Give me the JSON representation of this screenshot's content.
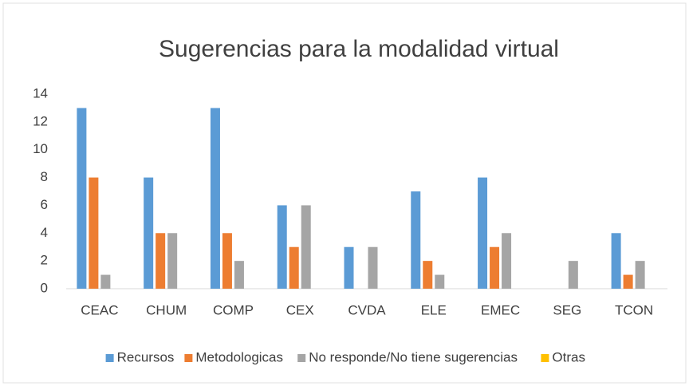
{
  "chart_data": {
    "type": "bar",
    "title": "Sugerencias para la modalidad virtual",
    "categories": [
      "CEAC",
      "CHUM",
      "COMP",
      "CEX",
      "CVDA",
      "ELE",
      "EMEC",
      "SEG",
      "TCON"
    ],
    "series": [
      {
        "name": "Recursos",
        "color": "#5b9bd5",
        "values": [
          13,
          8,
          13,
          6,
          3,
          7,
          8,
          0,
          4
        ]
      },
      {
        "name": "Metodologicas",
        "color": "#ed7d31",
        "values": [
          8,
          4,
          4,
          3,
          0,
          2,
          3,
          0,
          1
        ]
      },
      {
        "name": "No responde/No tiene sugerencias",
        "color": "#a5a5a5",
        "values": [
          1,
          4,
          2,
          6,
          3,
          1,
          4,
          2,
          2
        ]
      },
      {
        "name": "Otras",
        "color": "#ffc000",
        "values": [
          0,
          0,
          0,
          0,
          0,
          0,
          0,
          0,
          0
        ]
      }
    ],
    "ylim": [
      0,
      14
    ],
    "yticks": [
      0,
      2,
      4,
      6,
      8,
      10,
      12,
      14
    ],
    "grid": false,
    "legend": "bottom"
  }
}
